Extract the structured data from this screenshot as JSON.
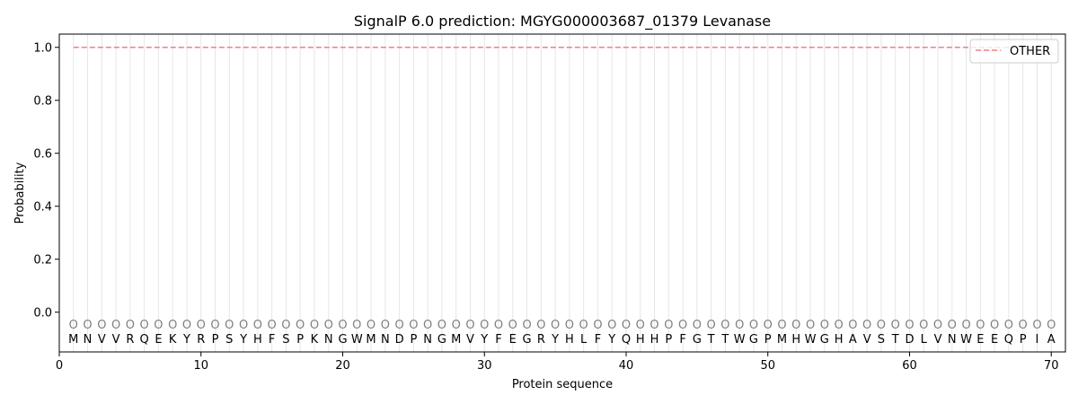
{
  "chart_data": {
    "type": "line",
    "title": "SignalP 6.0 prediction: MGYG000003687_01379 Levanase",
    "xlabel": "Protein sequence",
    "ylabel": "Probability",
    "xlim": [
      0,
      71
    ],
    "ylim": [
      -0.15,
      1.05
    ],
    "xticks": [
      0,
      10,
      20,
      30,
      40,
      50,
      60,
      70
    ],
    "yticks": [
      0.0,
      0.2,
      0.4,
      0.6,
      0.8,
      1.0
    ],
    "ytick_labels": [
      "0.0",
      "0.2",
      "0.4",
      "0.6",
      "0.8",
      "1.0"
    ],
    "legend_position": "top-right",
    "sequence": [
      "M",
      "N",
      "V",
      "V",
      "R",
      "Q",
      "E",
      "K",
      "Y",
      "R",
      "P",
      "S",
      "Y",
      "H",
      "F",
      "S",
      "P",
      "K",
      "N",
      "G",
      "W",
      "M",
      "N",
      "D",
      "P",
      "N",
      "G",
      "M",
      "V",
      "Y",
      "F",
      "E",
      "G",
      "R",
      "Y",
      "H",
      "L",
      "F",
      "Y",
      "Q",
      "H",
      "H",
      "P",
      "F",
      "G",
      "T",
      "T",
      "W",
      "G",
      "P",
      "M",
      "H",
      "W",
      "G",
      "H",
      "A",
      "V",
      "S",
      "T",
      "D",
      "L",
      "V",
      "N",
      "W",
      "E",
      "E",
      "Q",
      "P",
      "I",
      "A"
    ],
    "region_labels": [
      "O",
      "O",
      "O",
      "O",
      "O",
      "O",
      "O",
      "O",
      "O",
      "O",
      "O",
      "O",
      "O",
      "O",
      "O",
      "O",
      "O",
      "O",
      "O",
      "O",
      "O",
      "O",
      "O",
      "O",
      "O",
      "O",
      "O",
      "O",
      "O",
      "O",
      "O",
      "O",
      "O",
      "O",
      "O",
      "O",
      "O",
      "O",
      "O",
      "O",
      "O",
      "O",
      "O",
      "O",
      "O",
      "O",
      "O",
      "O",
      "O",
      "O",
      "O",
      "O",
      "O",
      "O",
      "O",
      "O",
      "O",
      "O",
      "O",
      "O",
      "O",
      "O",
      "O",
      "O",
      "O",
      "O",
      "O",
      "O",
      "O",
      "O"
    ],
    "series": [
      {
        "name": "OTHER",
        "color": "#f08080",
        "style": "dashed",
        "x_start": 1,
        "x_end": 70,
        "values_constant": 1.0
      }
    ]
  }
}
